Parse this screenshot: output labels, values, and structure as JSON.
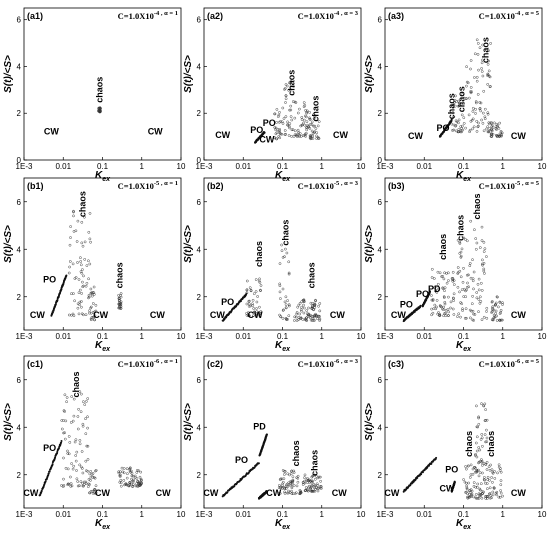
{
  "chart_data": [
    {
      "type": "scatter",
      "panel": "(a1)",
      "C": "C=1.0X10^-4",
      "alpha": "α = 1",
      "xlabel": "K_ex",
      "ylabel": "S(t)/<S>",
      "xscale": "log",
      "xlim": [
        0.001,
        10
      ],
      "ylim": [
        0,
        6.5
      ],
      "xticks": [
        "1E-3",
        "0.01",
        "0.1",
        "1",
        "10"
      ],
      "yticks": [
        "0",
        "2",
        "4",
        "6"
      ],
      "clusters": [
        {
          "x": [
            0.078,
            0.09
          ],
          "y": [
            2.05,
            2.25
          ]
        }
      ],
      "annotations": [
        {
          "text": "chaos",
          "x": 0.085,
          "y": 3.0,
          "rotate": true
        },
        {
          "text": "CW",
          "x": 0.005,
          "y": 1.1
        },
        {
          "text": "CW",
          "x": 2.2,
          "y": 1.1
        }
      ]
    },
    {
      "type": "scatter",
      "panel": "(a2)",
      "C": "C=1.0X10^-4",
      "alpha": "α = 3",
      "xlabel": "K_ex",
      "ylabel": "S(t)/<S>",
      "xscale": "log",
      "xlim": [
        0.001,
        10
      ],
      "ylim": [
        0,
        6.5
      ],
      "xticks": [
        "1E-3",
        "0.01",
        "0.1",
        "1",
        "10"
      ],
      "yticks": [
        "0",
        "2",
        "4",
        "6"
      ],
      "curves": [
        {
          "x": [
            0.02,
            0.035
          ],
          "y": [
            0.75,
            1.2
          ]
        }
      ],
      "clusters": [
        {
          "x": [
            0.06,
            0.1
          ],
          "y": [
            0.9,
            2.2
          ]
        },
        {
          "x": [
            0.1,
            0.2
          ],
          "y": [
            1.0,
            3.4
          ]
        },
        {
          "x": [
            0.2,
            0.5
          ],
          "y": [
            1.0,
            2.5
          ]
        },
        {
          "x": [
            0.5,
            0.9
          ],
          "y": [
            0.9,
            2.0
          ]
        }
      ],
      "annotations": [
        {
          "text": "chaos",
          "x": 0.17,
          "y": 3.3,
          "rotate": true
        },
        {
          "text": "chaos",
          "x": 0.7,
          "y": 2.2,
          "rotate": true
        },
        {
          "text": "PO",
          "x": 0.046,
          "y": 1.45
        },
        {
          "text": "PO",
          "x": 0.022,
          "y": 1.15
        },
        {
          "text": "CW",
          "x": 0.04,
          "y": 0.75
        },
        {
          "text": "CW",
          "x": 0.003,
          "y": 0.95
        },
        {
          "text": "CW",
          "x": 3.0,
          "y": 0.95
        }
      ]
    },
    {
      "type": "scatter",
      "panel": "(a3)",
      "C": "C=1.0X10^-4",
      "alpha": "α = 5",
      "xlabel": "K_ex",
      "ylabel": "S(t)/<S>",
      "xscale": "log",
      "xlim": [
        0.001,
        10
      ],
      "ylim": [
        0,
        6.5
      ],
      "xticks": [
        "1E-3",
        "0.01",
        "0.1",
        "1",
        "10"
      ],
      "yticks": [
        "0",
        "2",
        "4",
        "6"
      ],
      "curves": [
        {
          "x": [
            0.025,
            0.05
          ],
          "y": [
            1.0,
            1.7
          ]
        }
      ],
      "clusters": [
        {
          "x": [
            0.05,
            0.1
          ],
          "y": [
            1.2,
            2.8
          ]
        },
        {
          "x": [
            0.1,
            0.5
          ],
          "y": [
            1.2,
            5.2
          ]
        },
        {
          "x": [
            0.5,
            1.0
          ],
          "y": [
            1.0,
            1.7
          ]
        }
      ],
      "annotations": [
        {
          "text": "chaos",
          "x": 0.36,
          "y": 4.7,
          "rotate": true
        },
        {
          "text": "chaos",
          "x": 0.05,
          "y": 2.3,
          "rotate": true
        },
        {
          "text": "chaos",
          "x": 0.09,
          "y": 2.6,
          "rotate": true
        },
        {
          "text": "PO",
          "x": 0.03,
          "y": 1.25
        },
        {
          "text": "CW",
          "x": 0.006,
          "y": 0.9
        },
        {
          "text": "CW",
          "x": 2.5,
          "y": 0.9
        }
      ]
    },
    {
      "type": "scatter",
      "panel": "(b1)",
      "C": "C=1.0X10^-5",
      "alpha": "α = 1",
      "xlabel": "K_ex",
      "ylabel": "S(t)/<S>",
      "xscale": "log",
      "xlim": [
        0.001,
        10
      ],
      "ylim": [
        0.6,
        7
      ],
      "xticks": [
        "1E-3",
        "0.01",
        "0.1",
        "1",
        "10"
      ],
      "yticks": [
        "2",
        "4",
        "6"
      ],
      "curves": [
        {
          "x": [
            0.005,
            0.012
          ],
          "y": [
            1.2,
            2.9
          ]
        }
      ],
      "clusters": [
        {
          "x": [
            0.014,
            0.05
          ],
          "y": [
            1.2,
            5.8
          ]
        },
        {
          "x": [
            0.05,
            0.07
          ],
          "y": [
            1.0,
            2.5
          ]
        },
        {
          "x": [
            0.25,
            0.3
          ],
          "y": [
            1.5,
            2.2
          ]
        }
      ],
      "annotations": [
        {
          "text": "chaos",
          "x": 0.031,
          "y": 5.9,
          "rotate": true
        },
        {
          "text": "chaos",
          "x": 0.27,
          "y": 2.9,
          "rotate": true
        },
        {
          "text": "PO",
          "x": 0.0045,
          "y": 2.6
        },
        {
          "text": "CW",
          "x": 0.0022,
          "y": 1.1
        },
        {
          "text": "CW",
          "x": 0.09,
          "y": 1.1
        },
        {
          "text": "CW",
          "x": 2.5,
          "y": 1.1
        }
      ]
    },
    {
      "type": "scatter",
      "panel": "(b2)",
      "C": "C=1.0X10^-5",
      "alpha": "α = 3",
      "xlabel": "K_ex",
      "ylabel": "S(t)/<S>",
      "xscale": "log",
      "xlim": [
        0.001,
        10
      ],
      "ylim": [
        0.6,
        7
      ],
      "xticks": [
        "1E-3",
        "0.01",
        "0.1",
        "1",
        "10"
      ],
      "yticks": [
        "2",
        "4",
        "6"
      ],
      "curves": [
        {
          "x": [
            0.003,
            0.012
          ],
          "y": [
            1.0,
            2.1
          ]
        }
      ],
      "clusters": [
        {
          "x": [
            0.012,
            0.03
          ],
          "y": [
            1.2,
            2.8
          ]
        },
        {
          "x": [
            0.08,
            0.15
          ],
          "y": [
            1.0,
            4.2
          ]
        },
        {
          "x": [
            0.2,
            0.9
          ],
          "y": [
            1.0,
            2.0
          ]
        }
      ],
      "annotations": [
        {
          "text": "chaos",
          "x": 0.025,
          "y": 3.8,
          "rotate": true
        },
        {
          "text": "chaos",
          "x": 0.12,
          "y": 4.7,
          "rotate": true
        },
        {
          "text": "chaos",
          "x": 0.55,
          "y": 2.9,
          "rotate": true
        },
        {
          "text": "PO",
          "x": 0.004,
          "y": 1.65
        },
        {
          "text": "CW",
          "x": 0.0022,
          "y": 1.1
        },
        {
          "text": "CW",
          "x": 0.02,
          "y": 1.1
        },
        {
          "text": "CW",
          "x": 2.5,
          "y": 1.1
        }
      ]
    },
    {
      "type": "scatter",
      "panel": "(b3)",
      "C": "C=1.0X10^-5",
      "alpha": "α = 5",
      "xlabel": "K_ex",
      "ylabel": "S(t)/<S>",
      "xscale": "log",
      "xlim": [
        0.001,
        10
      ],
      "ylim": [
        0.6,
        7
      ],
      "xticks": [
        "1E-3",
        "0.01",
        "0.1",
        "1",
        "10"
      ],
      "yticks": [
        "2",
        "4",
        "6"
      ],
      "curves": [
        {
          "x": [
            0.003,
            0.008
          ],
          "y": [
            1.0,
            1.6
          ]
        },
        {
          "x": [
            0.009,
            0.014
          ],
          "y": [
            1.6,
            2.2
          ]
        }
      ],
      "clusters": [
        {
          "x": [
            0.015,
            0.06
          ],
          "y": [
            1.2,
            3.2
          ]
        },
        {
          "x": [
            0.07,
            0.4
          ],
          "y": [
            1.0,
            5.2
          ]
        },
        {
          "x": [
            0.5,
            1.0
          ],
          "y": [
            1.0,
            2.0
          ]
        }
      ],
      "annotations": [
        {
          "text": "chaos",
          "x": 0.03,
          "y": 4.1,
          "rotate": true
        },
        {
          "text": "chaos",
          "x": 0.085,
          "y": 4.9,
          "rotate": true
        },
        {
          "text": "chaos",
          "x": 0.22,
          "y": 5.8,
          "rotate": true
        },
        {
          "text": "PO",
          "x": 0.0035,
          "y": 1.55
        },
        {
          "text": "PO",
          "x": 0.009,
          "y": 2.0
        },
        {
          "text": "PD",
          "x": 0.018,
          "y": 2.2
        },
        {
          "text": "CW",
          "x": 0.0022,
          "y": 1.1
        },
        {
          "text": "CW",
          "x": 2.5,
          "y": 1.1
        }
      ]
    },
    {
      "type": "scatter",
      "panel": "(c1)",
      "C": "C=1.0X10^-6",
      "alpha": "α = 1",
      "xlabel": "K_ex",
      "ylabel": "S(t)/<S>",
      "xscale": "log",
      "xlim": [
        0.001,
        10
      ],
      "ylim": [
        0.6,
        7
      ],
      "xticks": [
        "1E-3",
        "0.01",
        "0.1",
        "1",
        "10"
      ],
      "yticks": [
        "2",
        "4",
        "6"
      ],
      "curves": [
        {
          "x": [
            0.0025,
            0.009
          ],
          "y": [
            1.1,
            3.4
          ]
        }
      ],
      "clusters": [
        {
          "x": [
            0.009,
            0.045
          ],
          "y": [
            1.5,
            5.5
          ]
        },
        {
          "x": [
            0.045,
            0.07
          ],
          "y": [
            1.2,
            2.2
          ]
        },
        {
          "x": [
            0.25,
            1.0
          ],
          "y": [
            1.5,
            2.3
          ]
        }
      ],
      "annotations": [
        {
          "text": "chaos",
          "x": 0.021,
          "y": 5.8,
          "rotate": true
        },
        {
          "text": "PO",
          "x": 0.0045,
          "y": 3.0
        },
        {
          "text": "CW",
          "x": 0.0015,
          "y": 1.1
        },
        {
          "text": "CW",
          "x": 0.1,
          "y": 1.1
        },
        {
          "text": "CW",
          "x": 3.5,
          "y": 1.1
        }
      ]
    },
    {
      "type": "scatter",
      "panel": "(c2)",
      "C": "C=1.0X10^-6",
      "alpha": "α = 3",
      "xlabel": "K_ex",
      "ylabel": "S(t)/<S>",
      "xscale": "log",
      "xlim": [
        0.001,
        10
      ],
      "ylim": [
        0.6,
        7
      ],
      "xticks": [
        "1E-3",
        "0.01",
        "0.1",
        "1",
        "10"
      ],
      "yticks": [
        "2",
        "4",
        "6"
      ],
      "curves": [
        {
          "x": [
            0.003,
            0.025
          ],
          "y": [
            1.1,
            2.5
          ]
        },
        {
          "x": [
            0.026,
            0.04
          ],
          "y": [
            2.8,
            3.7
          ]
        },
        {
          "x": [
            0.025,
            0.04
          ],
          "y": [
            1.0,
            1.3
          ]
        }
      ],
      "clusters": [
        {
          "x": [
            0.08,
            0.3
          ],
          "y": [
            1.2,
            2.2
          ]
        },
        {
          "x": [
            0.3,
            1.0
          ],
          "y": [
            1.3,
            2.0
          ]
        }
      ],
      "annotations": [
        {
          "text": "PD",
          "x": 0.026,
          "y": 3.9
        },
        {
          "text": "PO",
          "x": 0.009,
          "y": 2.5
        },
        {
          "text": "chaos",
          "x": 0.22,
          "y": 2.9,
          "rotate": true
        },
        {
          "text": "chaos",
          "x": 0.65,
          "y": 2.5,
          "rotate": true
        },
        {
          "text": "CW",
          "x": 0.0015,
          "y": 1.1
        },
        {
          "text": "CW",
          "x": 0.06,
          "y": 1.1
        },
        {
          "text": "CW",
          "x": 2.8,
          "y": 1.1
        }
      ]
    },
    {
      "type": "scatter",
      "panel": "(c3)",
      "C": "C=1.0X10^-6",
      "alpha": "α = 5",
      "xlabel": "K_ex",
      "ylabel": "S(t)/<S>",
      "xscale": "log",
      "xlim": [
        0.001,
        10
      ],
      "ylim": [
        0.6,
        7
      ],
      "xticks": [
        "1E-3",
        "0.01",
        "0.1",
        "1",
        "10"
      ],
      "yticks": [
        "2",
        "4",
        "6"
      ],
      "curves": [
        {
          "x": [
            0.003,
            0.02
          ],
          "y": [
            1.3,
            2.7
          ]
        },
        {
          "x": [
            0.05,
            0.06
          ],
          "y": [
            1.3,
            1.7
          ]
        }
      ],
      "clusters": [
        {
          "x": [
            0.1,
            1.0
          ],
          "y": [
            1.0,
            2.5
          ]
        },
        {
          "x": [
            0.2,
            0.4
          ],
          "y": [
            2.5,
            5.0
          ]
        }
      ],
      "annotations": [
        {
          "text": "chaos",
          "x": 0.14,
          "y": 3.3,
          "rotate": true
        },
        {
          "text": "chaos",
          "x": 0.5,
          "y": 3.3,
          "rotate": true
        },
        {
          "text": "PO",
          "x": 0.05,
          "y": 2.1
        },
        {
          "text": "CW",
          "x": 0.0015,
          "y": 1.1
        },
        {
          "text": "CW",
          "x": 0.038,
          "y": 1.3
        },
        {
          "text": "CW",
          "x": 2.5,
          "y": 1.1
        }
      ]
    }
  ]
}
